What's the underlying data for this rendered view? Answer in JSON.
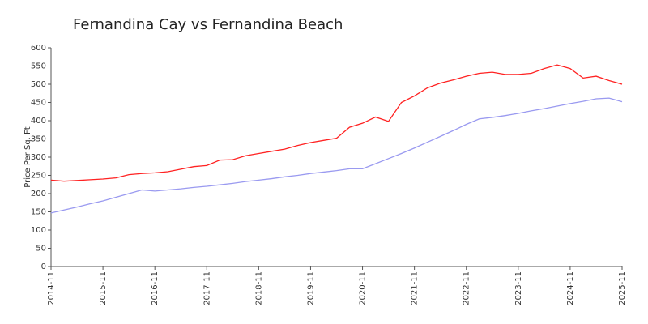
{
  "chart_data": {
    "type": "line",
    "title": "Fernandina Cay vs Fernandina Beach",
    "y_label": "Price Per Sq. Ft",
    "x": [
      "2014-11",
      "2015-02",
      "2015-05",
      "2015-08",
      "2015-11",
      "2016-02",
      "2016-05",
      "2016-08",
      "2016-11",
      "2017-02",
      "2017-05",
      "2017-08",
      "2017-11",
      "2018-02",
      "2018-05",
      "2018-08",
      "2018-11",
      "2019-02",
      "2019-05",
      "2019-08",
      "2019-11",
      "2020-02",
      "2020-05",
      "2020-08",
      "2020-11",
      "2021-02",
      "2021-05",
      "2021-08",
      "2021-11",
      "2022-02",
      "2022-05",
      "2022-08",
      "2022-11",
      "2023-02",
      "2023-05",
      "2023-08",
      "2023-11",
      "2024-02",
      "2024-05",
      "2024-08",
      "2024-11",
      "2025-02",
      "2025-05",
      "2025-08",
      "2025-11"
    ],
    "series": [
      {
        "color": "#ff2222",
        "values": [
          237,
          234,
          236,
          238,
          240,
          243,
          252,
          255,
          257,
          260,
          267,
          274,
          277,
          292,
          293,
          304,
          310,
          316,
          322,
          332,
          340,
          346,
          352,
          382,
          393,
          410,
          398,
          450,
          468,
          490,
          503,
          512,
          522,
          530,
          533,
          527,
          527,
          530,
          543,
          553,
          543,
          517,
          522,
          510,
          500
        ]
      },
      {
        "color": "#9a9af0",
        "values": [
          147,
          155,
          163,
          172,
          180,
          190,
          200,
          210,
          207,
          210,
          213,
          217,
          220,
          224,
          228,
          233,
          237,
          241,
          246,
          250,
          255,
          259,
          263,
          268,
          268,
          282,
          296,
          310,
          325,
          341,
          357,
          373,
          390,
          405,
          409,
          414,
          420,
          427,
          433,
          440,
          447,
          453,
          460,
          462,
          452
        ]
      }
    ],
    "xlim": [
      "2014-11",
      "2025-11"
    ],
    "xticks": [
      "2014-11",
      "2015-11",
      "2016-11",
      "2017-11",
      "2018-11",
      "2019-11",
      "2020-11",
      "2021-11",
      "2022-11",
      "2023-11",
      "2024-11",
      "2025-11"
    ],
    "ylim": [
      0,
      600
    ],
    "yticks": [
      0,
      50,
      100,
      150,
      200,
      250,
      300,
      350,
      400,
      450,
      500,
      550,
      600
    ]
  }
}
